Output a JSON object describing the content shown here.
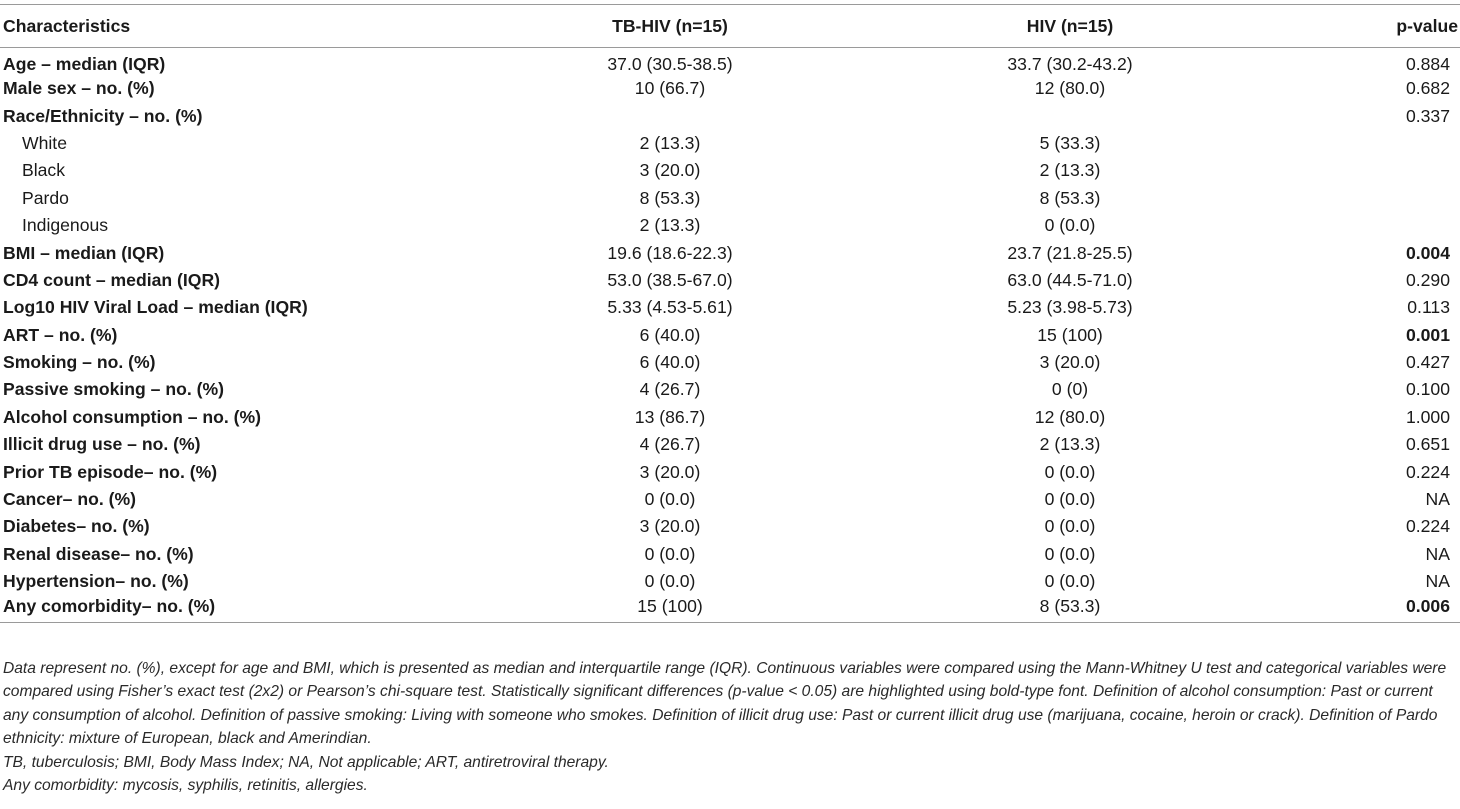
{
  "table": {
    "columns": [
      "Characteristics",
      "TB-HIV (n=15)",
      "HIV (n=15)",
      "p-value"
    ],
    "rows": [
      {
        "label": "Age – median (IQR)",
        "tbhiv": "37.0 (30.5-38.5)",
        "hiv": "33.7 (30.2-43.2)",
        "p": "0.884",
        "sub": false,
        "sig": false
      },
      {
        "label": "Male sex – no. (%)",
        "tbhiv": "10 (66.7)",
        "hiv": "12 (80.0)",
        "p": "0.682",
        "sub": false,
        "sig": false
      },
      {
        "label": "Race/Ethnicity – no. (%)",
        "tbhiv": "",
        "hiv": "",
        "p": "0.337",
        "sub": false,
        "sig": false
      },
      {
        "label": "White",
        "tbhiv": "2 (13.3)",
        "hiv": "5 (33.3)",
        "p": "",
        "sub": true,
        "sig": false
      },
      {
        "label": "Black",
        "tbhiv": "3 (20.0)",
        "hiv": "2 (13.3)",
        "p": "",
        "sub": true,
        "sig": false
      },
      {
        "label": "Pardo",
        "tbhiv": "8 (53.3)",
        "hiv": "8 (53.3)",
        "p": "",
        "sub": true,
        "sig": false
      },
      {
        "label": "Indigenous",
        "tbhiv": "2 (13.3)",
        "hiv": "0 (0.0)",
        "p": "",
        "sub": true,
        "sig": false
      },
      {
        "label": "BMI – median (IQR)",
        "tbhiv": "19.6 (18.6-22.3)",
        "hiv": "23.7 (21.8-25.5)",
        "p": "0.004",
        "sub": false,
        "sig": true
      },
      {
        "label": "CD4 count – median (IQR)",
        "tbhiv": "53.0 (38.5-67.0)",
        "hiv": "63.0 (44.5-71.0)",
        "p": "0.290",
        "sub": false,
        "sig": false
      },
      {
        "label": "Log10 HIV Viral Load – median (IQR)",
        "tbhiv": "5.33 (4.53-5.61)",
        "hiv": "5.23 (3.98-5.73)",
        "p": "0.113",
        "sub": false,
        "sig": false
      },
      {
        "label": "ART – no. (%)",
        "tbhiv": "6 (40.0)",
        "hiv": "15 (100)",
        "p": "0.001",
        "sub": false,
        "sig": true
      },
      {
        "label": "Smoking – no. (%)",
        "tbhiv": "6 (40.0)",
        "hiv": "3 (20.0)",
        "p": "0.427",
        "sub": false,
        "sig": false
      },
      {
        "label": "Passive smoking – no. (%)",
        "tbhiv": "4 (26.7)",
        "hiv": "0 (0)",
        "p": "0.100",
        "sub": false,
        "sig": false
      },
      {
        "label": "Alcohol consumption – no. (%)",
        "tbhiv": "13 (86.7)",
        "hiv": "12 (80.0)",
        "p": "1.000",
        "sub": false,
        "sig": false
      },
      {
        "label": "Illicit drug use – no. (%)",
        "tbhiv": "4 (26.7)",
        "hiv": "2 (13.3)",
        "p": "0.651",
        "sub": false,
        "sig": false
      },
      {
        "label": "Prior TB episode– no. (%)",
        "tbhiv": "3 (20.0)",
        "hiv": "0 (0.0)",
        "p": "0.224",
        "sub": false,
        "sig": false
      },
      {
        "label": "Cancer– no. (%)",
        "tbhiv": "0 (0.0)",
        "hiv": "0 (0.0)",
        "p": "NA",
        "sub": false,
        "sig": false
      },
      {
        "label": "Diabetes– no. (%)",
        "tbhiv": "3 (20.0)",
        "hiv": "0 (0.0)",
        "p": "0.224",
        "sub": false,
        "sig": false
      },
      {
        "label": "Renal disease– no. (%)",
        "tbhiv": "0 (0.0)",
        "hiv": "0 (0.0)",
        "p": "NA",
        "sub": false,
        "sig": false
      },
      {
        "label": "Hypertension– no. (%)",
        "tbhiv": "0 (0.0)",
        "hiv": "0 (0.0)",
        "p": "NA",
        "sub": false,
        "sig": false
      },
      {
        "label": "Any comorbidity– no. (%)",
        "tbhiv": "15 (100)",
        "hiv": "8 (53.3)",
        "p": "0.006",
        "sub": false,
        "sig": true
      }
    ]
  },
  "footnotes": [
    "Data represent no. (%), except for age and BMI, which is presented as median and interquartile range (IQR). Continuous variables were compared using the Mann-Whitney U test and categorical variables were compared using Fisher’s exact test (2x2) or Pearson’s chi-square test. Statistically significant differences (p-value < 0.05) are highlighted using bold-type font. Definition of alcohol consumption: Past or current any consumption of alcohol. Definition of passive smoking: Living with someone who smokes. Definition of illicit drug use: Past or current illicit drug use (marijuana, cocaine, heroin or crack). Definition of Pardo ethnicity: mixture of European, black and Amerindian.",
    "TB, tuberculosis; BMI, Body Mass Index; NA, Not applicable; ART, antiretroviral therapy.",
    "Any comorbidity: mycosis, syphilis, retinitis, allergies."
  ]
}
